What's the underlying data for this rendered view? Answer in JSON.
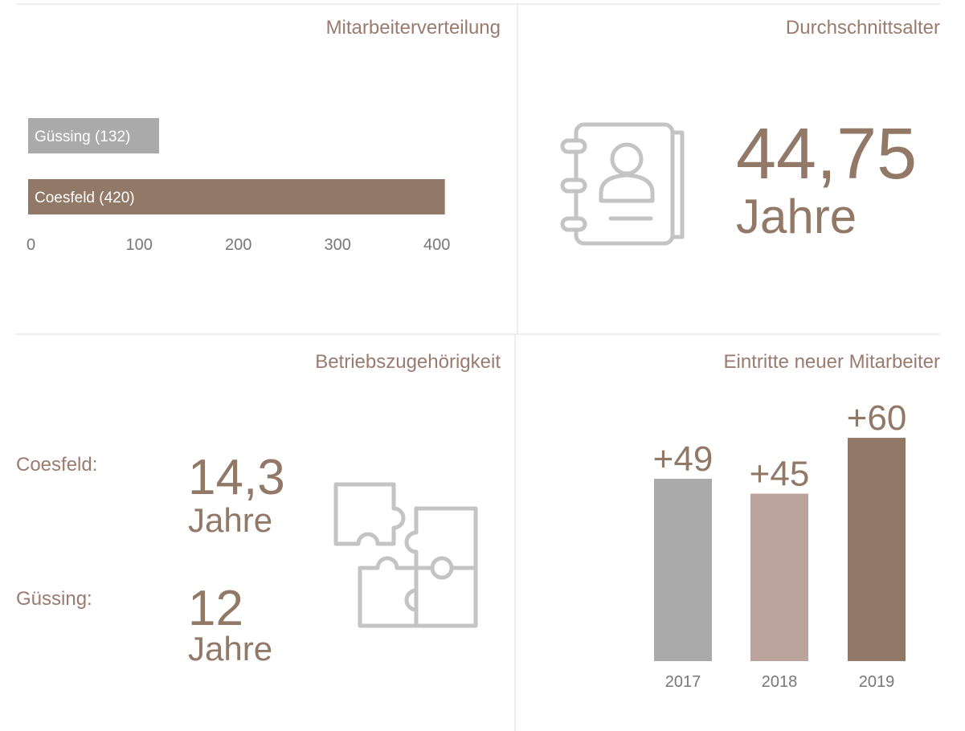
{
  "chart_data": [
    {
      "type": "barh",
      "title": "Mitarbeiterverteilung",
      "categories": [
        "Güssing",
        "Coesfeld"
      ],
      "values": [
        132,
        420
      ],
      "value_labels": [
        "Güssing (132)",
        "Coesfeld (420)"
      ],
      "colors": [
        "#aaaaaa",
        "#927866"
      ],
      "xlim": [
        0,
        430
      ],
      "xticks": [
        0,
        100,
        200,
        300,
        400
      ]
    },
    {
      "type": "bar",
      "title": "Eintritte neuer Mitarbeiter",
      "categories": [
        "2017",
        "2018",
        "2019"
      ],
      "values": [
        49,
        45,
        60
      ],
      "value_labels": [
        "+49",
        "+45",
        "+60"
      ],
      "colors": [
        "#aaaaaa",
        "#bba49e",
        "#927866"
      ],
      "ylim": [
        0,
        60
      ]
    }
  ],
  "average_age": {
    "title": "Durchschnittsalter",
    "value": "44,75",
    "unit": "Jahre"
  },
  "tenure": {
    "title": "Betriebszugehörigkeit",
    "items": [
      {
        "label": "Coesfeld:",
        "value": "14,3",
        "unit": "Jahre"
      },
      {
        "label": "Güssing:",
        "value": "12",
        "unit": "Jahre"
      }
    ]
  }
}
